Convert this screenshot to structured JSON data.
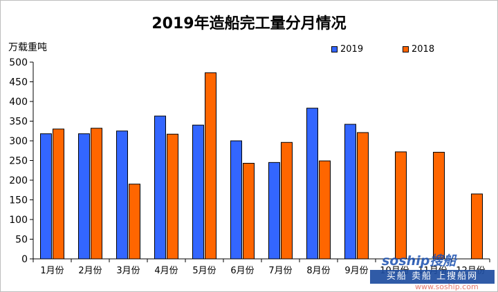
{
  "chart_data": {
    "type": "bar",
    "title": "2019年造船完工量分月情况",
    "ylabel": "万载重吨",
    "xlabel": "",
    "ylim": [
      0,
      500
    ],
    "yticks": [
      0,
      50,
      100,
      150,
      200,
      250,
      300,
      350,
      400,
      450,
      500
    ],
    "grid": false,
    "legend_position": "top-right",
    "categories": [
      "1月份",
      "2月份",
      "3月份",
      "4月份",
      "5月份",
      "6月份",
      "7月份",
      "8月份",
      "9月份",
      "10月份",
      "11月份",
      "12月份"
    ],
    "series": [
      {
        "name": "2019",
        "color": "#3366ff",
        "values": [
          318,
          318,
          325,
          363,
          340,
          300,
          245,
          383,
          342,
          null,
          null,
          null
        ]
      },
      {
        "name": "2018",
        "color": "#ff6600",
        "values": [
          330,
          332,
          190,
          317,
          473,
          243,
          296,
          249,
          321,
          272,
          271,
          165
        ]
      }
    ]
  },
  "watermark": {
    "brand": "soship搜船",
    "bar_text": "买船 卖船 上搜船网",
    "url": "www.soship.com"
  }
}
